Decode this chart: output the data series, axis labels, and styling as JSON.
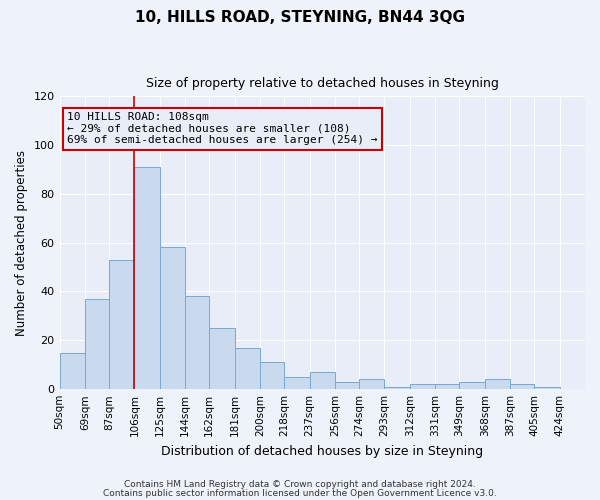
{
  "title": "10, HILLS ROAD, STEYNING, BN44 3QG",
  "subtitle": "Size of property relative to detached houses in Steyning",
  "xlabel": "Distribution of detached houses by size in Steyning",
  "ylabel": "Number of detached properties",
  "bar_values": [
    15,
    37,
    53,
    91,
    58,
    38,
    25,
    17,
    11,
    5,
    7,
    3,
    4,
    1,
    2,
    2,
    3,
    4,
    2,
    1
  ],
  "bar_labels": [
    "50sqm",
    "69sqm",
    "87sqm",
    "106sqm",
    "125sqm",
    "144sqm",
    "162sqm",
    "181sqm",
    "200sqm",
    "218sqm",
    "237sqm",
    "256sqm",
    "274sqm",
    "293sqm",
    "312sqm",
    "331sqm",
    "349sqm",
    "368sqm",
    "387sqm",
    "405sqm",
    "424sqm"
  ],
  "bin_edges": [
    50,
    69,
    87,
    106,
    125,
    144,
    162,
    181,
    200,
    218,
    237,
    256,
    274,
    293,
    312,
    331,
    349,
    368,
    387,
    405,
    424
  ],
  "bar_color": "#c9d9ee",
  "bar_edgecolor": "#7aa8d2",
  "vline_x": 106,
  "vline_color": "#cc0000",
  "annotation_title": "10 HILLS ROAD: 108sqm",
  "annotation_line1": "← 29% of detached houses are smaller (108)",
  "annotation_line2": "69% of semi-detached houses are larger (254) →",
  "annotation_box_edgecolor": "#cc0000",
  "ylim": [
    0,
    120
  ],
  "yticks": [
    0,
    20,
    40,
    60,
    80,
    100,
    120
  ],
  "footer1": "Contains HM Land Registry data © Crown copyright and database right 2024.",
  "footer2": "Contains public sector information licensed under the Open Government Licence v3.0.",
  "background_color": "#eef2fa",
  "plot_background": "#e8edf7",
  "grid_color": "#ffffff"
}
